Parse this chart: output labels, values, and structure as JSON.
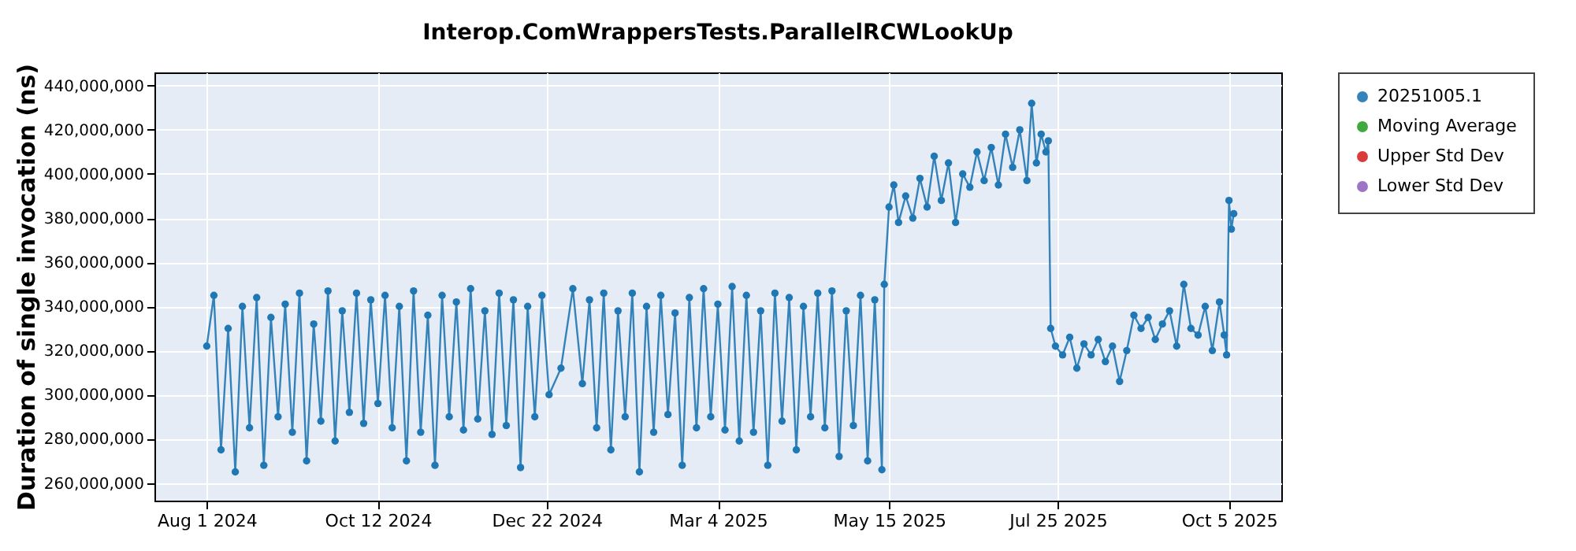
{
  "chart_data": {
    "type": "line",
    "title": "Interop.ComWrappersTests.ParallelRCWLookUp",
    "ylabel": "Duration of single invocation (ns)",
    "xlim": [
      "2024-07-10",
      "2025-10-27"
    ],
    "ylim": [
      252000000,
      446000000
    ],
    "xticks": [
      {
        "value": "2024-08-01",
        "label": "Aug 1 2024"
      },
      {
        "value": "2024-10-12",
        "label": "Oct 12 2024"
      },
      {
        "value": "2024-12-22",
        "label": "Dec 22 2024"
      },
      {
        "value": "2025-03-04",
        "label": "Mar 4 2025"
      },
      {
        "value": "2025-05-15",
        "label": "May 15 2025"
      },
      {
        "value": "2025-07-25",
        "label": "Jul 25 2025"
      },
      {
        "value": "2025-10-05",
        "label": "Oct 5 2025"
      }
    ],
    "yticks": [
      {
        "value": 260000000,
        "label": "260,000,000"
      },
      {
        "value": 280000000,
        "label": "280,000,000"
      },
      {
        "value": 300000000,
        "label": "300,000,000"
      },
      {
        "value": 320000000,
        "label": "320,000,000"
      },
      {
        "value": 340000000,
        "label": "340,000,000"
      },
      {
        "value": 360000000,
        "label": "360,000,000"
      },
      {
        "value": 380000000,
        "label": "380,000,000"
      },
      {
        "value": 400000000,
        "label": "400,000,000"
      },
      {
        "value": 420000000,
        "label": "420,000,000"
      },
      {
        "value": 440000000,
        "label": "440,000,000"
      }
    ],
    "grid": true,
    "legend": "right",
    "marker": "circle",
    "line_style": "solid",
    "series": [
      {
        "name": "20251005.1",
        "color": "#1f77b4",
        "x": [
          "2024-08-01",
          "2024-08-04",
          "2024-08-07",
          "2024-08-10",
          "2024-08-13",
          "2024-08-16",
          "2024-08-19",
          "2024-08-22",
          "2024-08-25",
          "2024-08-28",
          "2024-08-31",
          "2024-09-03",
          "2024-09-06",
          "2024-09-09",
          "2024-09-12",
          "2024-09-15",
          "2024-09-18",
          "2024-09-21",
          "2024-09-24",
          "2024-09-27",
          "2024-09-30",
          "2024-10-03",
          "2024-10-06",
          "2024-10-09",
          "2024-10-12",
          "2024-10-15",
          "2024-10-18",
          "2024-10-21",
          "2024-10-24",
          "2024-10-27",
          "2024-10-30",
          "2024-11-02",
          "2024-11-05",
          "2024-11-08",
          "2024-11-11",
          "2024-11-14",
          "2024-11-17",
          "2024-11-20",
          "2024-11-23",
          "2024-11-26",
          "2024-11-29",
          "2024-12-02",
          "2024-12-05",
          "2024-12-08",
          "2024-12-11",
          "2024-12-14",
          "2024-12-17",
          "2024-12-20",
          "2024-12-23",
          "2024-12-28",
          "2025-01-02",
          "2025-01-06",
          "2025-01-09",
          "2025-01-12",
          "2025-01-15",
          "2025-01-18",
          "2025-01-21",
          "2025-01-24",
          "2025-01-27",
          "2025-01-30",
          "2025-02-02",
          "2025-02-05",
          "2025-02-08",
          "2025-02-11",
          "2025-02-14",
          "2025-02-17",
          "2025-02-20",
          "2025-02-23",
          "2025-02-26",
          "2025-03-01",
          "2025-03-04",
          "2025-03-07",
          "2025-03-10",
          "2025-03-13",
          "2025-03-16",
          "2025-03-19",
          "2025-03-22",
          "2025-03-25",
          "2025-03-28",
          "2025-03-31",
          "2025-04-03",
          "2025-04-06",
          "2025-04-09",
          "2025-04-12",
          "2025-04-15",
          "2025-04-18",
          "2025-04-21",
          "2025-04-24",
          "2025-04-27",
          "2025-04-30",
          "2025-05-03",
          "2025-05-06",
          "2025-05-09",
          "2025-05-12",
          "2025-05-13",
          "2025-05-15",
          "2025-05-17",
          "2025-05-19",
          "2025-05-22",
          "2025-05-25",
          "2025-05-28",
          "2025-05-31",
          "2025-06-03",
          "2025-06-06",
          "2025-06-09",
          "2025-06-12",
          "2025-06-15",
          "2025-06-18",
          "2025-06-21",
          "2025-06-24",
          "2025-06-27",
          "2025-06-30",
          "2025-07-03",
          "2025-07-06",
          "2025-07-09",
          "2025-07-12",
          "2025-07-14",
          "2025-07-16",
          "2025-07-18",
          "2025-07-20",
          "2025-07-21",
          "2025-07-22",
          "2025-07-24",
          "2025-07-27",
          "2025-07-30",
          "2025-08-02",
          "2025-08-05",
          "2025-08-08",
          "2025-08-11",
          "2025-08-14",
          "2025-08-17",
          "2025-08-20",
          "2025-08-23",
          "2025-08-26",
          "2025-08-29",
          "2025-09-01",
          "2025-09-04",
          "2025-09-07",
          "2025-09-10",
          "2025-09-13",
          "2025-09-16",
          "2025-09-19",
          "2025-09-22",
          "2025-09-25",
          "2025-09-28",
          "2025-10-01",
          "2025-10-03",
          "2025-10-04",
          "2025-10-05",
          "2025-10-06",
          "2025-10-07"
        ],
        "values": [
          322000000,
          345000000,
          275000000,
          330000000,
          265000000,
          340000000,
          285000000,
          344000000,
          268000000,
          335000000,
          290000000,
          341000000,
          283000000,
          346000000,
          270000000,
          332000000,
          288000000,
          347000000,
          279000000,
          338000000,
          292000000,
          346000000,
          287000000,
          343000000,
          296000000,
          345000000,
          285000000,
          340000000,
          270000000,
          347000000,
          283000000,
          336000000,
          268000000,
          345000000,
          290000000,
          342000000,
          284000000,
          348000000,
          289000000,
          338000000,
          282000000,
          346000000,
          286000000,
          343000000,
          267000000,
          340000000,
          290000000,
          345000000,
          300000000,
          312000000,
          348000000,
          305000000,
          343000000,
          285000000,
          346000000,
          275000000,
          338000000,
          290000000,
          346000000,
          265000000,
          340000000,
          283000000,
          345000000,
          291000000,
          337000000,
          268000000,
          344000000,
          285000000,
          348000000,
          290000000,
          341000000,
          284000000,
          349000000,
          279000000,
          345000000,
          283000000,
          338000000,
          268000000,
          346000000,
          288000000,
          344000000,
          275000000,
          340000000,
          290000000,
          346000000,
          285000000,
          347000000,
          272000000,
          338000000,
          286000000,
          345000000,
          270000000,
          343000000,
          266000000,
          350000000,
          385000000,
          395000000,
          378000000,
          390000000,
          380000000,
          398000000,
          385000000,
          408000000,
          388000000,
          405000000,
          378000000,
          400000000,
          394000000,
          410000000,
          397000000,
          412000000,
          395000000,
          418000000,
          403000000,
          420000000,
          397000000,
          432000000,
          405000000,
          418000000,
          410000000,
          415000000,
          330000000,
          322000000,
          318000000,
          326000000,
          312000000,
          323000000,
          318000000,
          325000000,
          315000000,
          322000000,
          306000000,
          320000000,
          336000000,
          330000000,
          335000000,
          325000000,
          332000000,
          338000000,
          322000000,
          350000000,
          330000000,
          327000000,
          340000000,
          320000000,
          342000000,
          327000000,
          318000000,
          388000000,
          375000000,
          382000000
        ]
      },
      {
        "name": "Moving Average",
        "color": "#2ca02c"
      },
      {
        "name": "Upper Std Dev",
        "color": "#d62728"
      },
      {
        "name": "Lower Std Dev",
        "color": "#9467bd"
      }
    ]
  }
}
